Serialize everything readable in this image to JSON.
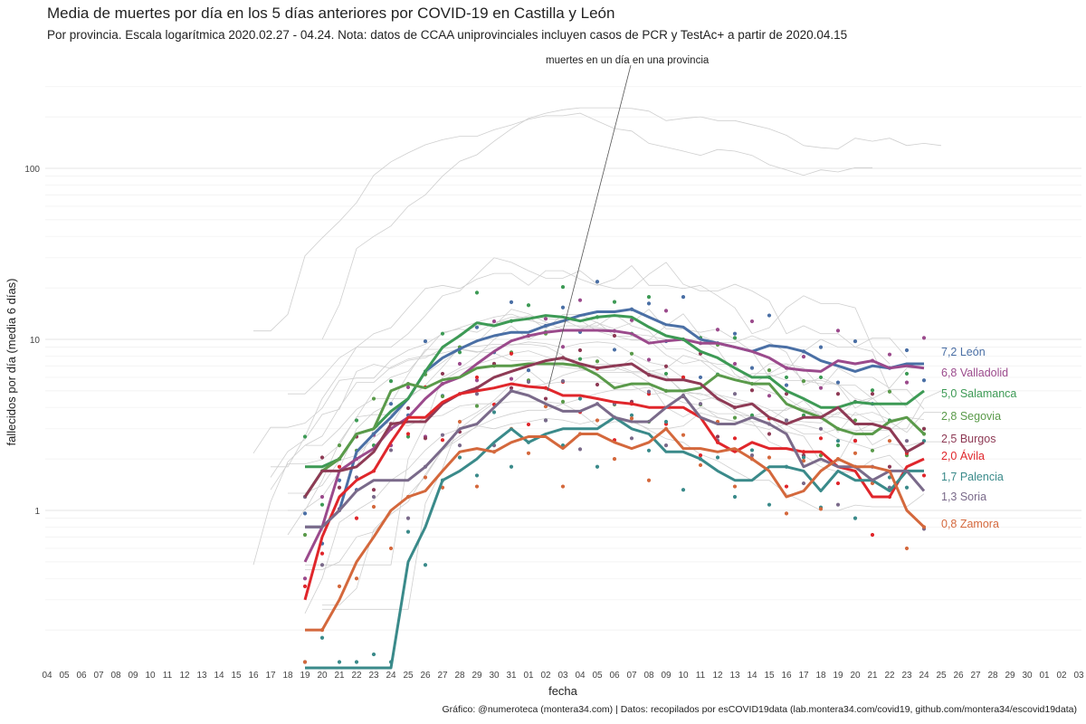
{
  "title": "Media de muertes por día en los 5 días anteriores por COVID-19 en Castilla y León",
  "subtitle": "Por provincia. Escala logarítmica  2020.02.27 - 04.24. Nota: datos de CCAA uniprovinciales incluyen casos de PCR y TestAc+ a partir de 2020.04.15",
  "caption": "Gráfico: @numeroteca (montera34.com) | Datos: recopilados por esCOVID19data (lab.montera34.com/covid19, github.com/montera34/escovid19data)",
  "chart_data": {
    "type": "line",
    "xlabel": "fecha",
    "ylabel": "fallecidos por día (media 6 días)",
    "y_scale": "log",
    "ylim": [
      0.12,
      400
    ],
    "y_ticks": [
      1,
      10,
      100
    ],
    "y_tick_labels": [
      "1",
      "10",
      "100"
    ],
    "annotation": "muertes en un día en una provincia",
    "x_tick_labels": [
      "04",
      "05",
      "06",
      "07",
      "08",
      "09",
      "10",
      "11",
      "12",
      "13",
      "14",
      "15",
      "16",
      "17",
      "18",
      "19",
      "20",
      "21",
      "22",
      "23",
      "24",
      "25",
      "26",
      "27",
      "28",
      "29",
      "30",
      "31",
      "01",
      "02",
      "03",
      "04",
      "05",
      "06",
      "07",
      "08",
      "09",
      "10",
      "11",
      "12",
      "13",
      "14",
      "15",
      "16",
      "17",
      "18",
      "19",
      "20",
      "21",
      "22",
      "23",
      "24",
      "25",
      "26",
      "27",
      "28",
      "29",
      "30",
      "01",
      "02",
      "03"
    ],
    "x_start_index_of_series": 15,
    "categories": [
      "19",
      "20",
      "21",
      "22",
      "23",
      "24",
      "25",
      "26",
      "27",
      "28",
      "29",
      "30",
      "31",
      "01",
      "02",
      "03",
      "04",
      "05",
      "06",
      "07",
      "08",
      "09",
      "10",
      "11",
      "12",
      "13",
      "14",
      "15",
      "16",
      "17",
      "18",
      "19",
      "20",
      "21",
      "22",
      "23",
      "24"
    ],
    "series": [
      {
        "name": "León",
        "label": "7,2 León",
        "color": "#4a6fa5",
        "values": [
          0.8,
          0.8,
          1.0,
          2.2,
          2.8,
          3.5,
          4.5,
          6.5,
          7.8,
          8.8,
          9.8,
          10.5,
          11.0,
          11.0,
          12.0,
          12.8,
          13.8,
          14.5,
          14.5,
          15.0,
          13.5,
          12.2,
          11.8,
          10.0,
          9.5,
          9.0,
          8.5,
          9.2,
          9.0,
          8.5,
          7.5,
          7.0,
          6.5,
          7.0,
          6.8,
          7.2,
          7.2
        ]
      },
      {
        "name": "Valladolid",
        "label": "6,8 Valladolid",
        "color": "#9b4a8c",
        "values": [
          0.5,
          0.8,
          1.7,
          2.0,
          2.3,
          3.0,
          3.5,
          4.5,
          5.5,
          6.0,
          7.2,
          8.5,
          9.8,
          10.5,
          11.0,
          11.3,
          11.3,
          11.3,
          11.2,
          10.8,
          9.5,
          9.8,
          10.0,
          9.5,
          9.5,
          9.0,
          8.5,
          7.8,
          6.8,
          6.6,
          6.5,
          7.5,
          7.2,
          7.5,
          6.8,
          7.0,
          6.8
        ]
      },
      {
        "name": "Salamanca",
        "label": "5,0 Salamanca",
        "color": "#3d9a55",
        "values": [
          1.8,
          1.8,
          2.0,
          2.8,
          3.0,
          3.8,
          4.5,
          6.5,
          9.0,
          10.5,
          12.5,
          12.0,
          12.8,
          13.2,
          13.8,
          13.5,
          12.8,
          13.5,
          13.8,
          13.5,
          11.8,
          10.5,
          10.0,
          8.5,
          7.8,
          6.8,
          6.0,
          6.0,
          5.0,
          4.5,
          4.0,
          4.0,
          4.3,
          4.2,
          4.2,
          4.2,
          5.0
        ]
      },
      {
        "name": "Segovia",
        "label": "2,8 Segovia",
        "color": "#5a9a4a",
        "values": [
          1.2,
          1.7,
          2.0,
          2.8,
          3.0,
          5.0,
          5.5,
          5.2,
          5.8,
          6.0,
          6.8,
          7.0,
          7.0,
          7.2,
          7.2,
          7.2,
          7.0,
          6.2,
          5.2,
          5.5,
          5.5,
          5.0,
          5.0,
          5.2,
          6.2,
          5.8,
          5.5,
          5.5,
          4.2,
          3.8,
          3.5,
          3.0,
          2.8,
          2.8,
          3.3,
          3.5,
          2.8
        ]
      },
      {
        "name": "Burgos",
        "label": "2,5 Burgos",
        "color": "#8e3a55",
        "values": [
          1.2,
          1.7,
          1.7,
          1.8,
          2.2,
          3.2,
          3.3,
          3.3,
          4.2,
          4.8,
          5.2,
          6.0,
          6.5,
          7.0,
          7.5,
          7.8,
          7.2,
          6.8,
          7.0,
          7.2,
          6.2,
          5.8,
          5.8,
          5.5,
          4.5,
          4.0,
          4.2,
          3.5,
          3.2,
          3.5,
          3.5,
          4.0,
          3.2,
          3.2,
          3.0,
          2.2,
          2.5
        ]
      },
      {
        "name": "Ávila",
        "label": "2,0 Ávila",
        "color": "#e0262b",
        "values": [
          0.3,
          0.7,
          1.2,
          1.5,
          1.7,
          2.5,
          3.5,
          3.5,
          4.3,
          4.8,
          5.0,
          5.2,
          5.5,
          5.3,
          5.2,
          4.7,
          4.7,
          4.5,
          4.3,
          4.2,
          4.0,
          4.0,
          4.0,
          3.5,
          2.5,
          2.2,
          2.5,
          2.3,
          2.3,
          2.2,
          2.2,
          1.8,
          1.7,
          1.2,
          1.2,
          1.8,
          2.0
        ]
      },
      {
        "name": "Palencia",
        "label": "1,7 Palencia",
        "color": "#3a8a8a",
        "values": [
          0.12,
          0.12,
          0.12,
          0.12,
          0.12,
          0.12,
          0.5,
          0.8,
          1.5,
          1.7,
          2.0,
          2.5,
          3.0,
          2.5,
          2.8,
          3.0,
          3.0,
          3.0,
          3.5,
          3.0,
          2.8,
          2.2,
          2.2,
          2.0,
          1.7,
          1.5,
          1.5,
          1.8,
          1.8,
          1.7,
          1.3,
          1.7,
          1.5,
          1.5,
          1.3,
          1.7,
          1.7
        ]
      },
      {
        "name": "Soria",
        "label": "1,3 Soria",
        "color": "#7a6a8a",
        "values": [
          0.8,
          0.8,
          1.0,
          1.3,
          1.5,
          1.5,
          1.5,
          1.8,
          2.3,
          3.0,
          3.2,
          4.0,
          5.0,
          4.7,
          4.2,
          3.8,
          3.8,
          4.2,
          3.5,
          3.3,
          3.3,
          4.0,
          4.7,
          3.5,
          3.2,
          3.2,
          3.5,
          3.2,
          2.8,
          1.8,
          2.0,
          1.8,
          1.8,
          1.5,
          1.7,
          1.7,
          1.3
        ]
      },
      {
        "name": "Zamora",
        "label": "0,8 Zamora",
        "color": "#d4683c",
        "values": [
          0.2,
          0.2,
          0.3,
          0.5,
          0.7,
          1.0,
          1.2,
          1.3,
          1.7,
          2.2,
          2.3,
          2.2,
          2.5,
          2.7,
          2.7,
          2.3,
          2.8,
          2.8,
          2.5,
          2.3,
          2.5,
          3.0,
          2.3,
          2.3,
          2.2,
          2.3,
          2.0,
          1.7,
          1.2,
          1.3,
          1.7,
          2.0,
          1.8,
          1.8,
          1.7,
          1.0,
          0.8
        ]
      }
    ]
  }
}
